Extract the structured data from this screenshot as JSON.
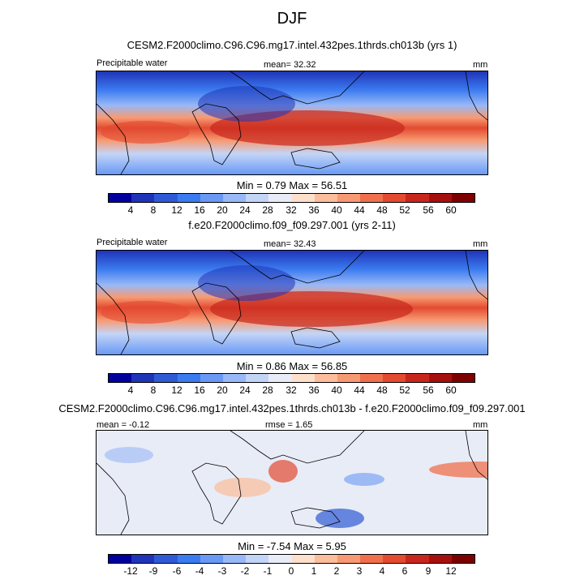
{
  "page_title": "DJF",
  "colors": {
    "seq": [
      "#00009e",
      "#1f34b8",
      "#2f5ad6",
      "#3b7bf0",
      "#6a99f5",
      "#98b8f7",
      "#c3d5f6",
      "#e8ecf6",
      "#fde0cc",
      "#fbbd9b",
      "#f79a73",
      "#f0704d",
      "#e34a30",
      "#c8261c",
      "#a5100f",
      "#7d0000"
    ],
    "coast": "#000000"
  },
  "panels": [
    {
      "case": "CESM2.F2000climo.C96.C96.mg17.intel.432pes.1thrds.ch013b (yrs 1)",
      "left_label": "Precipitable water",
      "center_label": "mean=  32.32",
      "right_label": "mm",
      "min_text": "Min =   0.79 Max =  56.51",
      "colorbar": [
        "4",
        "8",
        "12",
        "16",
        "20",
        "24",
        "28",
        "32",
        "36",
        "40",
        "44",
        "48",
        "52",
        "56",
        "60"
      ]
    },
    {
      "case": "f.e20.F2000climo.f09_f09.297.001 (yrs 2-11)",
      "left_label": "Precipitable water",
      "center_label": "mean=  32.43",
      "right_label": "mm",
      "min_text": "Min =   0.86 Max =  56.85",
      "colorbar": [
        "4",
        "8",
        "12",
        "16",
        "20",
        "24",
        "28",
        "32",
        "36",
        "40",
        "44",
        "48",
        "52",
        "56",
        "60"
      ]
    },
    {
      "case": "CESM2.F2000climo.C96.C96.mg17.intel.432pes.1thrds.ch013b - f.e20.F2000climo.f09_f09.297.001",
      "left_label": "mean = -0.12",
      "center_label": "rmse =  1.65",
      "right_label": "mm",
      "min_text": "Min =  -7.54 Max =   5.95",
      "colorbar": [
        "-12",
        "-9",
        "-6",
        "-4",
        "-3",
        "-2",
        "-1",
        "0",
        "1",
        "2",
        "3",
        "4",
        "6",
        "9",
        "12"
      ]
    }
  ]
}
